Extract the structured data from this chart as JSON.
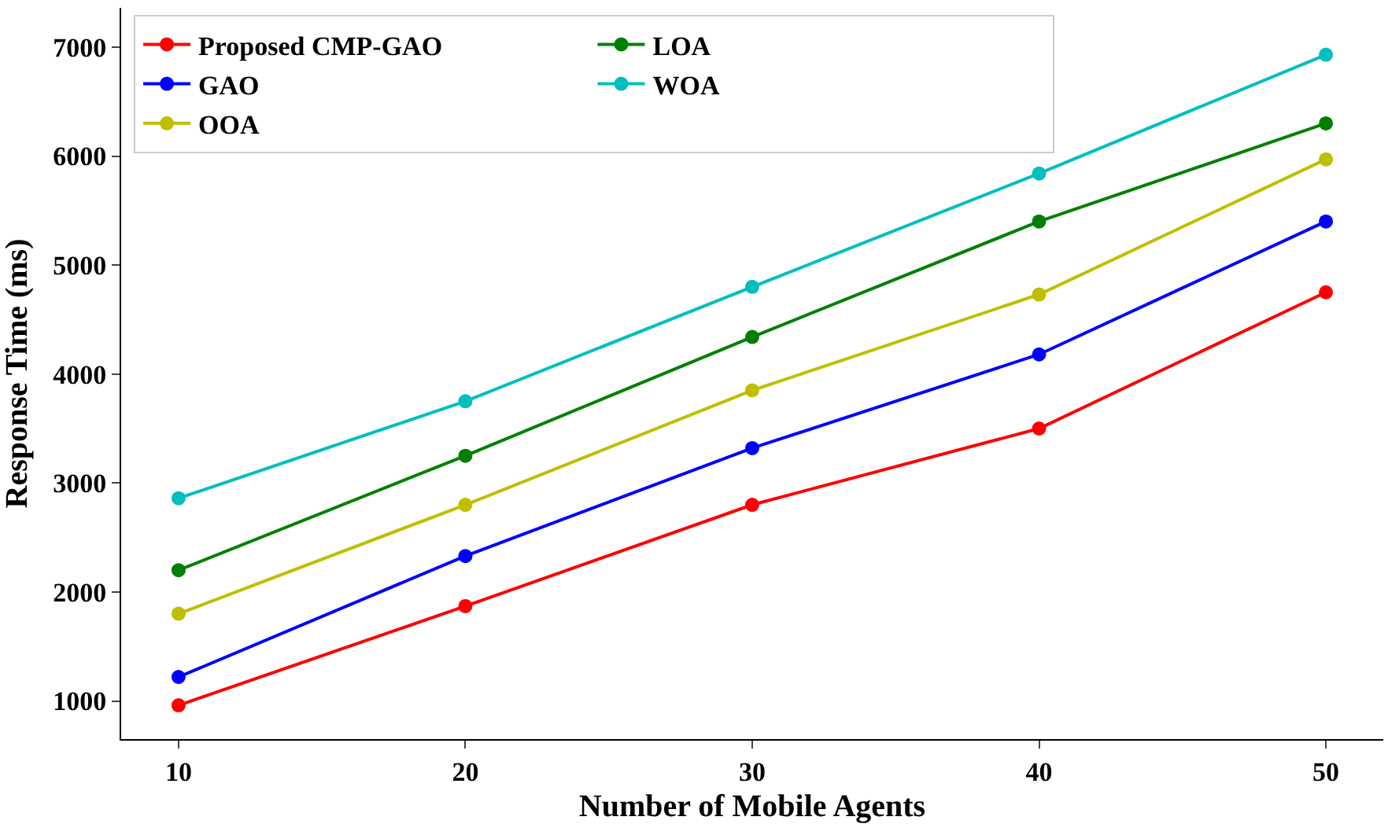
{
  "chart_data": {
    "type": "line",
    "xlabel": "Number of Mobile Agents",
    "ylabel": "Response Time (ms)",
    "x": [
      10,
      20,
      30,
      40,
      50
    ],
    "xlim": [
      8,
      52
    ],
    "xticks": [
      10,
      20,
      30,
      40,
      50
    ],
    "ylim": [
      650,
      7360
    ],
    "yticks": [
      1000,
      2000,
      3000,
      4000,
      5000,
      6000,
      7000
    ],
    "legend": "top left",
    "marker": "circle",
    "line_style": "solid",
    "series": [
      {
        "name": "Proposed CMP-GAO",
        "color": "#ff0000",
        "values": [
          960,
          1870,
          2800,
          3500,
          4750
        ]
      },
      {
        "name": "GAO",
        "color": "#0000ff",
        "values": [
          1220,
          2330,
          3320,
          4180,
          5400
        ]
      },
      {
        "name": "OOA",
        "color": "#bfbf00",
        "values": [
          1800,
          2800,
          3850,
          4730,
          5970
        ]
      },
      {
        "name": "LOA",
        "color": "#008000",
        "values": [
          2200,
          3250,
          4340,
          5400,
          6300
        ]
      },
      {
        "name": "WOA",
        "color": "#00bfbf",
        "values": [
          2860,
          3750,
          4800,
          5840,
          6930
        ]
      }
    ]
  }
}
